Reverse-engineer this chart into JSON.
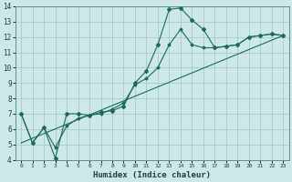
{
  "xlabel": "Humidex (Indice chaleur)",
  "background_color": "#cce8e8",
  "grid_color": "#aac8c8",
  "line_color": "#1a6b5a",
  "spine_color": "#5a9090",
  "xlim": [
    -0.5,
    23.5
  ],
  "ylim": [
    4,
    14
  ],
  "xticks": [
    0,
    1,
    2,
    3,
    4,
    5,
    6,
    7,
    8,
    9,
    10,
    11,
    12,
    13,
    14,
    15,
    16,
    17,
    18,
    19,
    20,
    21,
    22,
    23
  ],
  "yticks": [
    4,
    5,
    6,
    7,
    8,
    9,
    10,
    11,
    12,
    13,
    14
  ],
  "line1_x": [
    0,
    1,
    2,
    3,
    4,
    5,
    6,
    7,
    8,
    9,
    10,
    11,
    12,
    13,
    14,
    15,
    16,
    17,
    18,
    19,
    20,
    21,
    22,
    23
  ],
  "line1_y": [
    7.0,
    5.1,
    6.1,
    4.1,
    7.0,
    7.0,
    6.9,
    7.1,
    7.2,
    7.5,
    9.0,
    9.8,
    11.5,
    13.8,
    13.9,
    13.1,
    12.5,
    11.3,
    11.4,
    11.5,
    12.0,
    12.1,
    12.2,
    12.1
  ],
  "line2_x": [
    0,
    1,
    2,
    3,
    4,
    5,
    6,
    7,
    8,
    9,
    10,
    11,
    12,
    13,
    14,
    15,
    16,
    17,
    18,
    19,
    20,
    21,
    22,
    23
  ],
  "line2_y": [
    7.0,
    5.1,
    6.1,
    4.8,
    6.2,
    6.7,
    6.9,
    7.0,
    7.3,
    7.7,
    8.9,
    9.3,
    10.0,
    11.5,
    12.5,
    11.5,
    11.3,
    11.3,
    11.4,
    11.5,
    12.0,
    12.1,
    12.2,
    12.1
  ],
  "line3_x": [
    0,
    23
  ],
  "line3_y": [
    5.1,
    12.1
  ]
}
